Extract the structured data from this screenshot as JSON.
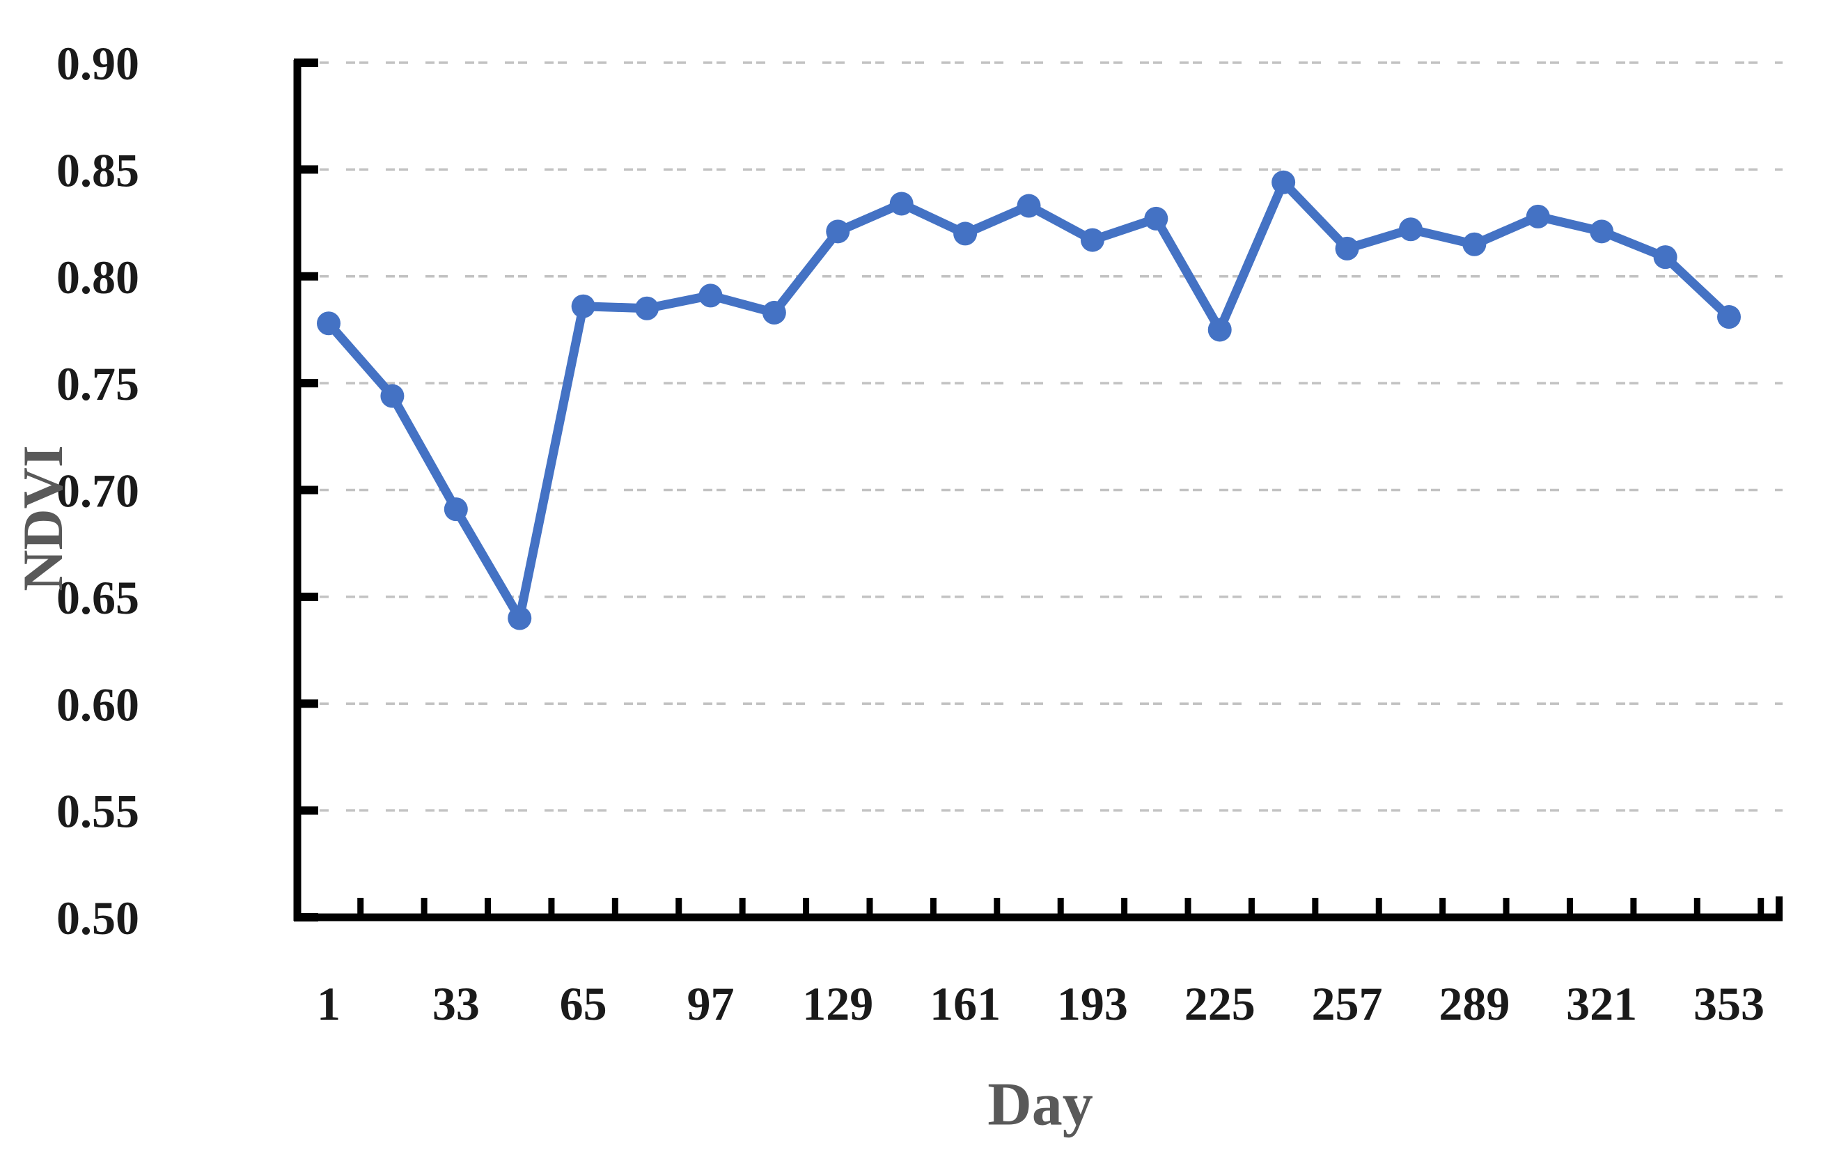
{
  "figure": {
    "title": "",
    "background": "#ffffff"
  },
  "chart_data": {
    "type": "line",
    "title": "",
    "xlabel": "Day",
    "ylabel": "NDVI",
    "x": [
      1,
      17,
      33,
      49,
      65,
      81,
      97,
      113,
      129,
      145,
      161,
      177,
      193,
      209,
      225,
      241,
      257,
      273,
      289,
      305,
      321,
      337,
      353
    ],
    "values": [
      0.778,
      0.744,
      0.691,
      0.64,
      0.786,
      0.785,
      0.791,
      0.783,
      0.821,
      0.834,
      0.82,
      0.833,
      0.817,
      0.827,
      0.775,
      0.844,
      0.813,
      0.822,
      0.815,
      0.828,
      0.821,
      0.809,
      0.781
    ],
    "series_name": "NDVI",
    "x_tick_days": [
      1,
      33,
      65,
      97,
      129,
      161,
      193,
      225,
      257,
      289,
      321,
      353
    ],
    "x_tick_labels": [
      "1",
      "33",
      "65",
      "97",
      "129",
      "161",
      "193",
      "225",
      "257",
      "289",
      "321",
      "353"
    ],
    "y_ticks": [
      0.5,
      0.55,
      0.6,
      0.65,
      0.7,
      0.75,
      0.8,
      0.85,
      0.9
    ],
    "y_tick_labels": [
      "0.50",
      "0.55",
      "0.60",
      "0.65",
      "0.70",
      "0.75",
      "0.80",
      "0.85",
      "0.90"
    ],
    "ylim": [
      0.5,
      0.9
    ],
    "xlim_days": [
      1,
      353
    ],
    "grid": "horizontal-dashed",
    "legend_position": "none",
    "marker": "circle",
    "colors": {
      "line": "#4472C4",
      "marker": "#4472C4",
      "axis": "#000000",
      "gridline": "#c2c2c2",
      "tick_label": "#1a1a1a",
      "axis_title": "#595959"
    }
  }
}
